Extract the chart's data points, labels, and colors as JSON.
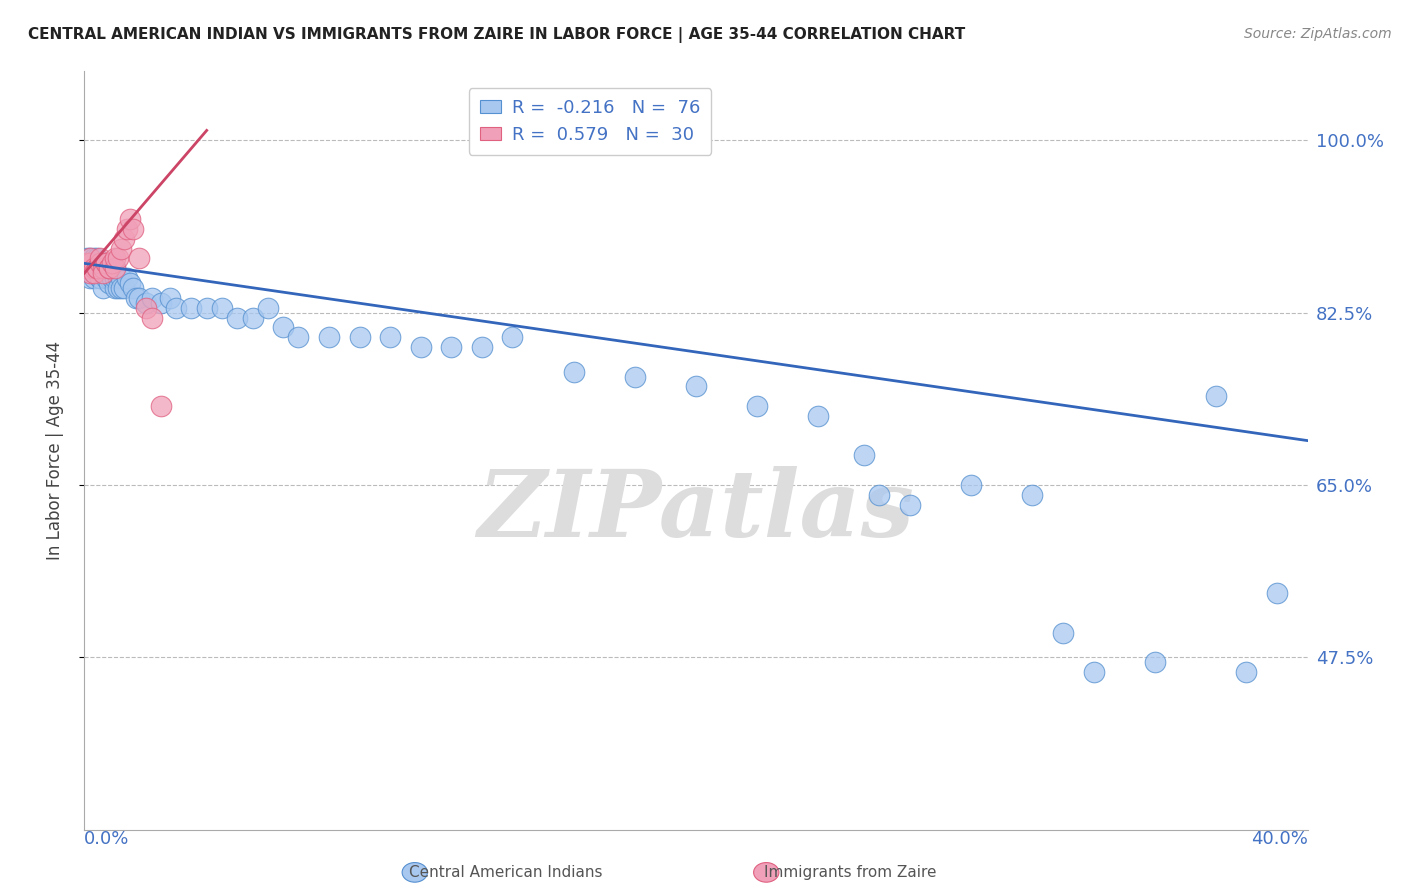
{
  "title": "CENTRAL AMERICAN INDIAN VS IMMIGRANTS FROM ZAIRE IN LABOR FORCE | AGE 35-44 CORRELATION CHART",
  "source": "Source: ZipAtlas.com",
  "ylabel": "In Labor Force | Age 35-44",
  "ytick_vals": [
    0.475,
    0.65,
    0.825,
    1.0
  ],
  "ytick_labels": [
    "47.5%",
    "65.0%",
    "82.5%",
    "100.0%"
  ],
  "xlim": [
    0.0,
    0.4
  ],
  "ylim": [
    0.3,
    1.07
  ],
  "R_blue": -0.216,
  "N_blue": 76,
  "R_pink": 0.579,
  "N_pink": 30,
  "blue_fill": "#a8c8f0",
  "pink_fill": "#f0a0b8",
  "blue_edge": "#5590d0",
  "pink_edge": "#e06080",
  "trend_blue": "#3366bb",
  "trend_pink": "#cc4466",
  "legend_blue_label": "Central American Indians",
  "legend_pink_label": "Immigrants from Zaire",
  "watermark_text": "ZIPatlas",
  "blue_trend_x0": 0.0,
  "blue_trend_x1": 0.4,
  "blue_trend_y0": 0.875,
  "blue_trend_y1": 0.695,
  "pink_trend_x0": 0.0,
  "pink_trend_x1": 0.04,
  "pink_trend_y0": 0.865,
  "pink_trend_y1": 1.01,
  "blue_x": [
    0.001,
    0.001,
    0.001,
    0.002,
    0.002,
    0.002,
    0.002,
    0.003,
    0.003,
    0.003,
    0.003,
    0.004,
    0.004,
    0.004,
    0.005,
    0.005,
    0.005,
    0.006,
    0.006,
    0.006,
    0.007,
    0.007,
    0.008,
    0.008,
    0.008,
    0.009,
    0.009,
    0.01,
    0.01,
    0.01,
    0.011,
    0.011,
    0.012,
    0.012,
    0.013,
    0.014,
    0.015,
    0.016,
    0.017,
    0.018,
    0.02,
    0.022,
    0.025,
    0.028,
    0.03,
    0.035,
    0.04,
    0.045,
    0.05,
    0.055,
    0.06,
    0.065,
    0.07,
    0.08,
    0.09,
    0.1,
    0.11,
    0.12,
    0.13,
    0.14,
    0.16,
    0.18,
    0.2,
    0.22,
    0.24,
    0.255,
    0.26,
    0.27,
    0.29,
    0.31,
    0.32,
    0.33,
    0.35,
    0.37,
    0.38,
    0.39
  ],
  "blue_y": [
    0.875,
    0.87,
    0.88,
    0.88,
    0.865,
    0.86,
    0.87,
    0.87,
    0.88,
    0.86,
    0.875,
    0.87,
    0.87,
    0.88,
    0.86,
    0.86,
    0.87,
    0.865,
    0.85,
    0.87,
    0.86,
    0.87,
    0.86,
    0.855,
    0.87,
    0.86,
    0.87,
    0.85,
    0.86,
    0.87,
    0.86,
    0.85,
    0.86,
    0.85,
    0.85,
    0.86,
    0.855,
    0.85,
    0.84,
    0.84,
    0.835,
    0.84,
    0.835,
    0.84,
    0.83,
    0.83,
    0.83,
    0.83,
    0.82,
    0.82,
    0.83,
    0.81,
    0.8,
    0.8,
    0.8,
    0.8,
    0.79,
    0.79,
    0.79,
    0.8,
    0.765,
    0.76,
    0.75,
    0.73,
    0.72,
    0.68,
    0.64,
    0.63,
    0.65,
    0.64,
    0.5,
    0.46,
    0.47,
    0.74,
    0.46,
    0.54
  ],
  "pink_x": [
    0.001,
    0.001,
    0.002,
    0.002,
    0.002,
    0.003,
    0.003,
    0.004,
    0.004,
    0.005,
    0.005,
    0.006,
    0.006,
    0.007,
    0.007,
    0.008,
    0.008,
    0.009,
    0.01,
    0.01,
    0.011,
    0.012,
    0.013,
    0.014,
    0.015,
    0.016,
    0.018,
    0.02,
    0.022,
    0.025
  ],
  "pink_y": [
    0.87,
    0.875,
    0.875,
    0.865,
    0.88,
    0.87,
    0.865,
    0.87,
    0.87,
    0.875,
    0.88,
    0.87,
    0.865,
    0.875,
    0.875,
    0.87,
    0.87,
    0.875,
    0.87,
    0.88,
    0.88,
    0.89,
    0.9,
    0.91,
    0.92,
    0.91,
    0.88,
    0.83,
    0.82,
    0.73
  ]
}
